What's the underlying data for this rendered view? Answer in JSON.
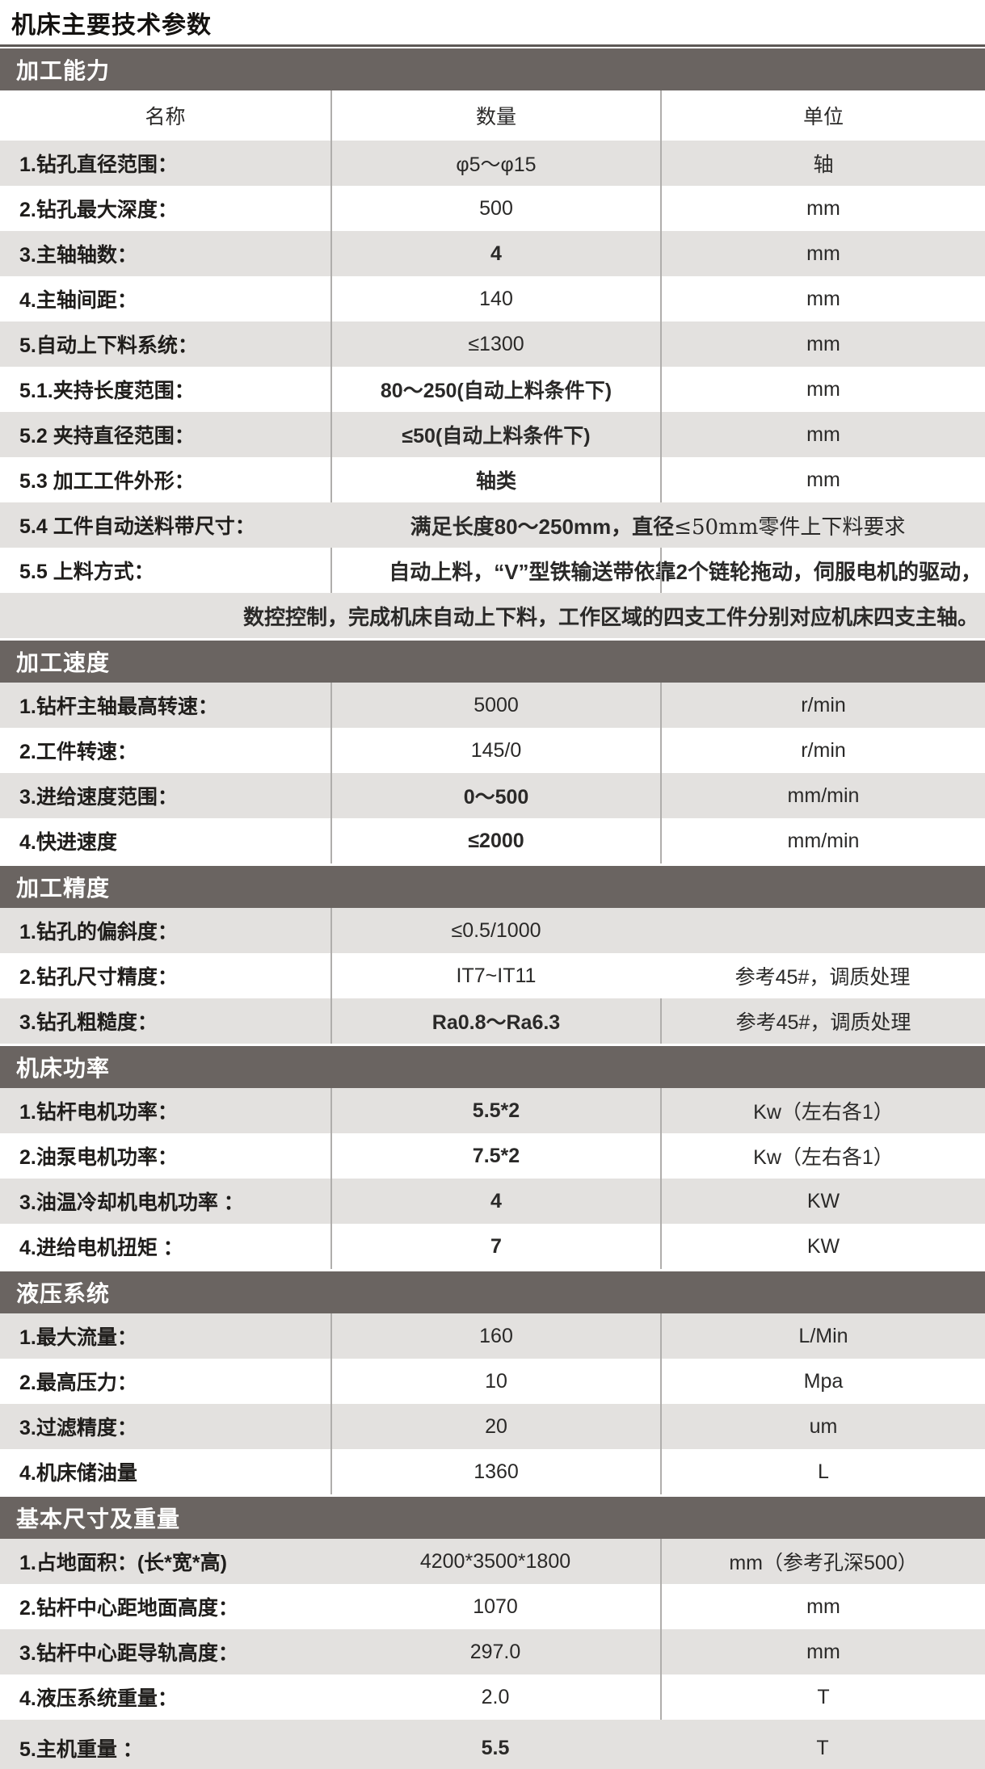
{
  "page_title": "机床主要技术参数",
  "table_header": {
    "name": "名称",
    "qty": "数量",
    "unit": "单位"
  },
  "sections": [
    {
      "title": "加工能力",
      "rows": [
        {
          "label": "1.钻孔直径范围：",
          "value": "φ5～φ15",
          "unit": "轴"
        },
        {
          "label": "2.钻孔最大深度：",
          "value": "500",
          "unit": "mm"
        },
        {
          "label": "3.主轴轴数：",
          "value": "4",
          "unit": "mm"
        },
        {
          "label": "4.主轴间距：",
          "value": "140",
          "unit": "mm"
        },
        {
          "label": "5.自动上下料系统：",
          "value": "≤1300",
          "unit": "mm"
        },
        {
          "label": "5.1.夹持长度范围：",
          "value": "80～250(自动上料条件下)",
          "unit": "mm"
        },
        {
          "label": "5.2 夹持直径范围：",
          "value": "≤50(自动上料条件下)",
          "unit": "mm"
        },
        {
          "label": "5.3 加工工件外形：",
          "value": "轴类",
          "unit": "mm"
        },
        {
          "label": "5.4 工件自动送料带尺寸：",
          "value_head": "满足长度80～250mm，直径",
          "value_tail": "≤50mm零件上下料要求"
        },
        {
          "label": "5.5 上料方式：",
          "value": "自动上料，“V”型铁输送带依靠2个链轮拖动，伺服电机的驱动，"
        },
        {
          "continuation": "数控控制，完成机床自动上下料，工作区域的四支工件分别对应机床四支主轴。"
        }
      ]
    },
    {
      "title": "加工速度",
      "rows": [
        {
          "label": "1.钻杆主轴最高转速：",
          "value": "5000",
          "unit": "r/min"
        },
        {
          "label": "2.工件转速：",
          "value": "145/0",
          "unit": "r/min"
        },
        {
          "label": "3.进给速度范围：",
          "value": "0～500",
          "unit": "mm/min"
        },
        {
          "label": "4.快进速度",
          "value": "≤2000",
          "unit": "mm/min"
        }
      ]
    },
    {
      "title": "加工精度",
      "rows": [
        {
          "label": "1.钻孔的偏斜度：",
          "value": "≤0.5/1000",
          "unit": ""
        },
        {
          "label": "2.钻孔尺寸精度：",
          "value": "IT7~IT11",
          "unit": "参考45#，调质处理"
        },
        {
          "label": "3.钻孔粗糙度：",
          "value": "Ra0.8～Ra6.3",
          "unit": "参考45#，调质处理"
        }
      ]
    },
    {
      "title": "机床功率",
      "rows": [
        {
          "label": "1.钻杆电机功率：",
          "value": "5.5*2",
          "unit": "Kw（左右各1）"
        },
        {
          "label": "2.油泵电机功率：",
          "value": "7.5*2",
          "unit": "Kw（左右各1）"
        },
        {
          "label": "3.油温冷却机电机功率 ：",
          "value": "4",
          "unit": "KW"
        },
        {
          "label": "4.进给电机扭矩 ：",
          "value": "7",
          "unit": "KW"
        }
      ]
    },
    {
      "title": "液压系统",
      "rows": [
        {
          "label": "1.最大流量：",
          "value": "160",
          "unit": "L/Min"
        },
        {
          "label": "2.最高压力：",
          "value": "10",
          "unit": "Mpa"
        },
        {
          "label": "3.过滤精度：",
          "value": "20",
          "unit": "um"
        },
        {
          "label": "4.机床储油量",
          "value": "1360",
          "unit": "L"
        }
      ]
    },
    {
      "title": "基本尺寸及重量",
      "rows": [
        {
          "label": "1.占地面积：(长*宽*高)",
          "value": "4200*3500*1800",
          "unit": "mm（参考孔深500）"
        },
        {
          "label": "2.钻杆中心距地面高度：",
          "value": "1070",
          "unit": "mm"
        },
        {
          "label": "3.钻杆中心距导轨高度：",
          "value": "297.0",
          "unit": "mm"
        },
        {
          "label": "4.液压系统重量：",
          "value": "2.0",
          "unit": "T"
        },
        {
          "label": "5.主机重量 ：",
          "value": "5.5",
          "unit": "T"
        }
      ]
    }
  ]
}
